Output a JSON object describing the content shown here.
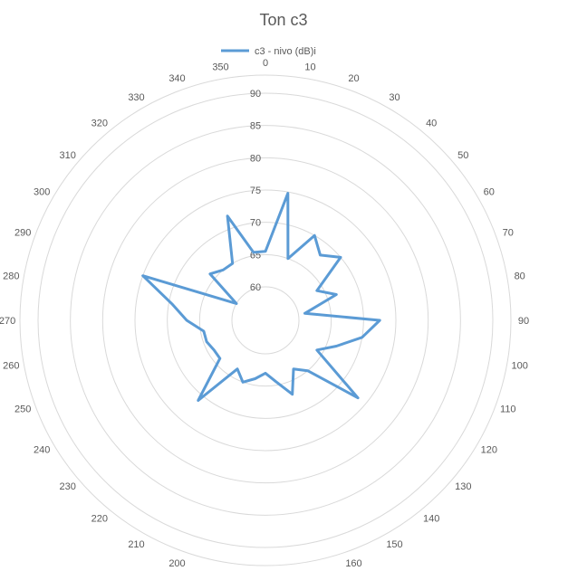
{
  "chart_data": {
    "type": "radar",
    "title": "Ton  c3",
    "legend_position": "top",
    "grid": true,
    "rlim": [
      60,
      90
    ],
    "ring_ticks": [
      "60",
      "65",
      "70",
      "75",
      "80",
      "85",
      "90"
    ],
    "angle_ticks": [
      "0",
      "10",
      "20",
      "30",
      "40",
      "50",
      "60",
      "70",
      "80",
      "90",
      "100",
      "110",
      "120",
      "130",
      "140",
      "150",
      "160",
      "170",
      "180",
      "190",
      "200",
      "210",
      "220",
      "230",
      "240",
      "250",
      "260",
      "270",
      "280",
      "290",
      "300",
      "310",
      "320",
      "330",
      "340",
      "350"
    ],
    "series": [
      {
        "name": "c3 - nivo (dB)i",
        "color": "#5b9bd5",
        "angles": [
          0,
          10,
          20,
          30,
          40,
          50,
          60,
          70,
          80,
          90,
          100,
          110,
          120,
          130,
          140,
          150,
          160,
          170,
          180,
          190,
          200,
          210,
          220,
          230,
          240,
          250,
          260,
          270,
          280,
          290,
          300,
          310,
          320,
          330,
          340,
          350
        ],
        "values": [
          65.5,
          74.8,
          65,
          70,
          68,
          70,
          64,
          66.5,
          61,
          72.5,
          70,
          66.5,
          64,
          73.5,
          65,
          63.5,
          67,
          64.5,
          63,
          64,
          65,
          63.5,
          71,
          64,
          64,
          64.5,
          64.5,
          67,
          69.5,
          75,
          60,
          66,
          65,
          65,
          72,
          65.5
        ]
      }
    ]
  }
}
